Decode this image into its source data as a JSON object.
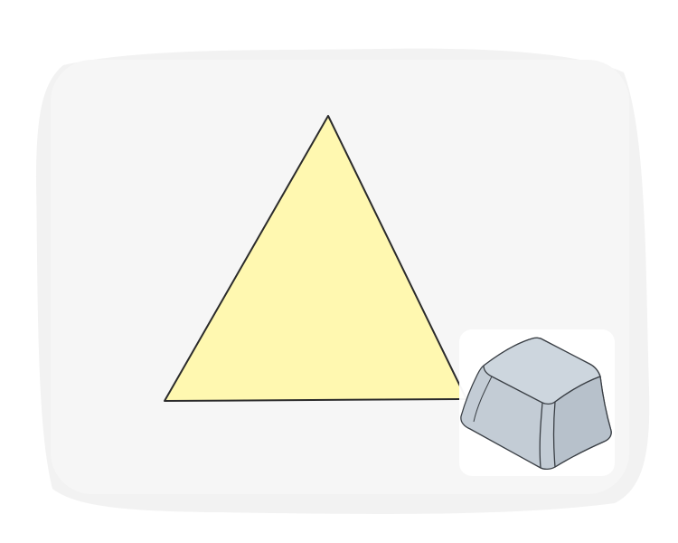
{
  "illustration": {
    "background_color": "#f6f6f6",
    "brush_color": "#f2f2f2",
    "triangle": {
      "fill": "#fff8b0",
      "stroke": "#2b2b2b"
    },
    "keycap": {
      "badge_color": "#ffffff",
      "top_fill": "#cdd6de",
      "front_fill": "#c3ccd5",
      "side_fill": "#b7c1cb",
      "stroke": "#3a3f45"
    }
  }
}
